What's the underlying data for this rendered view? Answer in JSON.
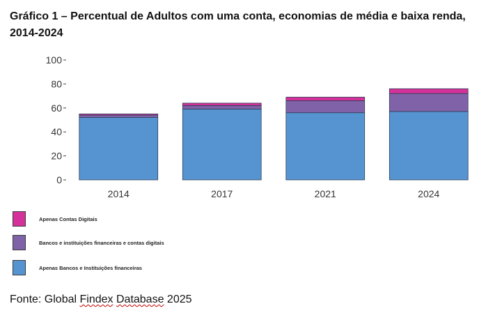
{
  "title": "Gráfico 1 – Percentual de Adultos com uma conta, economias de média e baixa renda, 2014-2024",
  "chart_data": {
    "type": "bar",
    "stacked": true,
    "categories": [
      "2014",
      "2017",
      "2021",
      "2024"
    ],
    "series": [
      {
        "name": "Apenas Bancos e Instituições financeiras",
        "color": "#5693d1",
        "values": [
          52,
          59,
          56,
          57
        ]
      },
      {
        "name": "Bancos e instituições financeiras e contas digitais",
        "color": "#7f62a8",
        "values": [
          2,
          3,
          10,
          15
        ]
      },
      {
        "name": "Apenas Contas Digitais",
        "color": "#d4329a",
        "values": [
          1,
          2,
          3,
          4
        ]
      }
    ],
    "ylim": [
      0,
      100
    ],
    "yticks": [
      0,
      20,
      40,
      60,
      80,
      100
    ],
    "xlabel": "",
    "ylabel": "",
    "grid": false,
    "legend_position": "bottom-left"
  },
  "legend": [
    {
      "label": "Apenas Contas Digitais",
      "color": "#d4329a"
    },
    {
      "label": "Bancos e instituições financeiras e contas digitais",
      "color": "#7f62a8"
    },
    {
      "label": "Apenas Bancos e Instituições financeiras",
      "color": "#5693d1"
    }
  ],
  "source": {
    "prefix": "Fonte: Global ",
    "word1": "Findex",
    "space": " ",
    "word2": "Database",
    "suffix": " 2025"
  }
}
